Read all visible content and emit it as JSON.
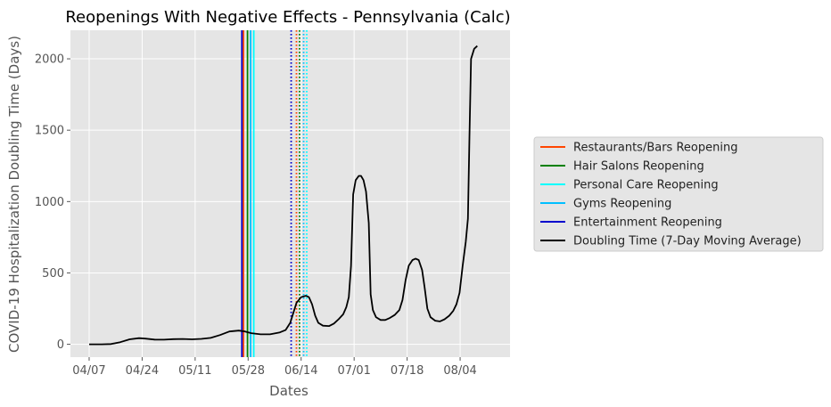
{
  "chart_data": {
    "type": "line",
    "title": "Reopenings With Negative Effects - Pennsylvania (Calc)",
    "xlabel": "Dates",
    "ylabel": "COVID-19 Hospitalization Doubling Time (Days)",
    "x_ticks": [
      {
        "day": 0,
        "label": "04/07"
      },
      {
        "day": 17,
        "label": "04/24"
      },
      {
        "day": 34,
        "label": "05/11"
      },
      {
        "day": 51,
        "label": "05/28"
      },
      {
        "day": 68,
        "label": "06/14"
      },
      {
        "day": 85,
        "label": "07/01"
      },
      {
        "day": 102,
        "label": "07/18"
      },
      {
        "day": 119,
        "label": "08/04"
      }
    ],
    "y_ticks": [
      0,
      500,
      1000,
      1500,
      2000
    ],
    "xlim": [
      -6,
      135
    ],
    "ylim": [
      -90,
      2200
    ],
    "grid": true,
    "legend_position": "center-right, outside plot",
    "series": [
      {
        "name": "Doubling Time (7-Day Moving Average)",
        "color": "#000000",
        "points": [
          [
            0,
            0
          ],
          [
            4,
            0
          ],
          [
            7,
            2
          ],
          [
            10,
            15
          ],
          [
            13,
            35
          ],
          [
            16,
            43
          ],
          [
            18,
            40
          ],
          [
            21,
            33
          ],
          [
            24,
            32
          ],
          [
            27,
            36
          ],
          [
            30,
            37
          ],
          [
            33,
            35
          ],
          [
            36,
            38
          ],
          [
            39,
            45
          ],
          [
            42,
            65
          ],
          [
            45,
            90
          ],
          [
            48,
            96
          ],
          [
            50,
            90
          ],
          [
            52,
            78
          ],
          [
            55,
            70
          ],
          [
            58,
            70
          ],
          [
            61,
            82
          ],
          [
            63,
            100
          ],
          [
            64.5,
            150
          ],
          [
            65.5,
            220
          ],
          [
            66.5,
            290
          ],
          [
            68,
            330
          ],
          [
            69.5,
            340
          ],
          [
            70.5,
            330
          ],
          [
            71.5,
            280
          ],
          [
            72.5,
            200
          ],
          [
            73.5,
            150
          ],
          [
            75,
            130
          ],
          [
            77,
            128
          ],
          [
            78.5,
            145
          ],
          [
            80,
            175
          ],
          [
            81.5,
            210
          ],
          [
            82.5,
            260
          ],
          [
            83.3,
            330
          ],
          [
            84,
            550
          ],
          [
            84.7,
            1050
          ],
          [
            85.5,
            1150
          ],
          [
            86.5,
            1180
          ],
          [
            87.2,
            1180
          ],
          [
            88,
            1150
          ],
          [
            88.8,
            1070
          ],
          [
            89.7,
            850
          ],
          [
            90.3,
            350
          ],
          [
            91,
            240
          ],
          [
            92,
            190
          ],
          [
            93.5,
            170
          ],
          [
            95,
            170
          ],
          [
            96.5,
            185
          ],
          [
            98,
            205
          ],
          [
            99.5,
            240
          ],
          [
            100.5,
            310
          ],
          [
            101.5,
            450
          ],
          [
            102.5,
            550
          ],
          [
            103.7,
            590
          ],
          [
            104.7,
            600
          ],
          [
            105.7,
            590
          ],
          [
            106.8,
            520
          ],
          [
            107.6,
            400
          ],
          [
            108.5,
            250
          ],
          [
            109.5,
            190
          ],
          [
            111,
            165
          ],
          [
            112.5,
            160
          ],
          [
            114,
            175
          ],
          [
            115.5,
            200
          ],
          [
            116.8,
            235
          ],
          [
            117.8,
            280
          ],
          [
            118.8,
            360
          ],
          [
            119.8,
            550
          ],
          [
            120.8,
            720
          ],
          [
            121.5,
            880
          ],
          [
            122,
            1450
          ],
          [
            122.5,
            2000
          ],
          [
            123.5,
            2070
          ],
          [
            124.5,
            2090
          ]
        ]
      }
    ],
    "reopenings": [
      {
        "name": "Restaurants/Bars Reopening",
        "color": "#ff4500",
        "solid_day": 49.5,
        "dotted_day": 66.5
      },
      {
        "name": "Hair Salons Reopening",
        "color": "#008000",
        "solid_day": 50.8,
        "dotted_day": 67.5
      },
      {
        "name": "Personal Care Reopening",
        "color": "#00ffff",
        "solid_day": 52.8,
        "dotted_day": 69.8
      },
      {
        "name": "Gyms Reopening",
        "color": "#00bfff",
        "solid_day": 51.8,
        "dotted_day": 68.8
      },
      {
        "name": "Entertainment Reopening",
        "color": "#0000cd",
        "solid_day": 49,
        "dotted_day": 64.8
      }
    ],
    "legend_entries": [
      {
        "label": "Restaurants/Bars Reopening",
        "color": "#ff4500"
      },
      {
        "label": "Hair Salons Reopening",
        "color": "#008000"
      },
      {
        "label": "Personal Care Reopening",
        "color": "#00ffff"
      },
      {
        "label": "Gyms Reopening",
        "color": "#00bfff"
      },
      {
        "label": "Entertainment Reopening",
        "color": "#0000cd"
      },
      {
        "label": "Doubling Time (7-Day Moving Average)",
        "color": "#000000"
      }
    ]
  }
}
